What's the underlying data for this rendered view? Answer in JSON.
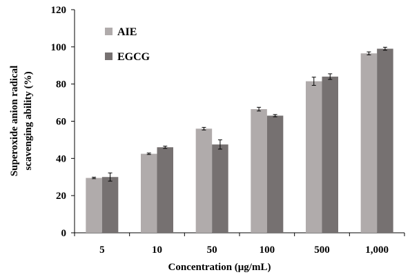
{
  "chart_data": {
    "type": "bar",
    "categories": [
      "5",
      "10",
      "50",
      "100",
      "500",
      "1,000"
    ],
    "series": [
      {
        "name": "AIE",
        "color": "#b0abab",
        "values": [
          29.5,
          42.5,
          56.0,
          66.5,
          81.5,
          96.5
        ],
        "errors": [
          0.4,
          0.4,
          0.7,
          1.0,
          2.2,
          0.8
        ]
      },
      {
        "name": "EGCG",
        "color": "#767171",
        "values": [
          30.0,
          46.0,
          47.5,
          63.0,
          84.0,
          99.0
        ],
        "errors": [
          2.2,
          0.6,
          2.5,
          0.6,
          1.5,
          0.8
        ]
      }
    ],
    "xlabel": "Concentration (μg/mL)",
    "ylabel_line1": "Superoxide anion radical",
    "ylabel_line2": "scavenging ability (%)",
    "ylim": [
      0,
      120
    ],
    "yticks": [
      "0",
      "20",
      "40",
      "60",
      "80",
      "100",
      "120"
    ],
    "grid": false,
    "legend_position": "top-left"
  }
}
